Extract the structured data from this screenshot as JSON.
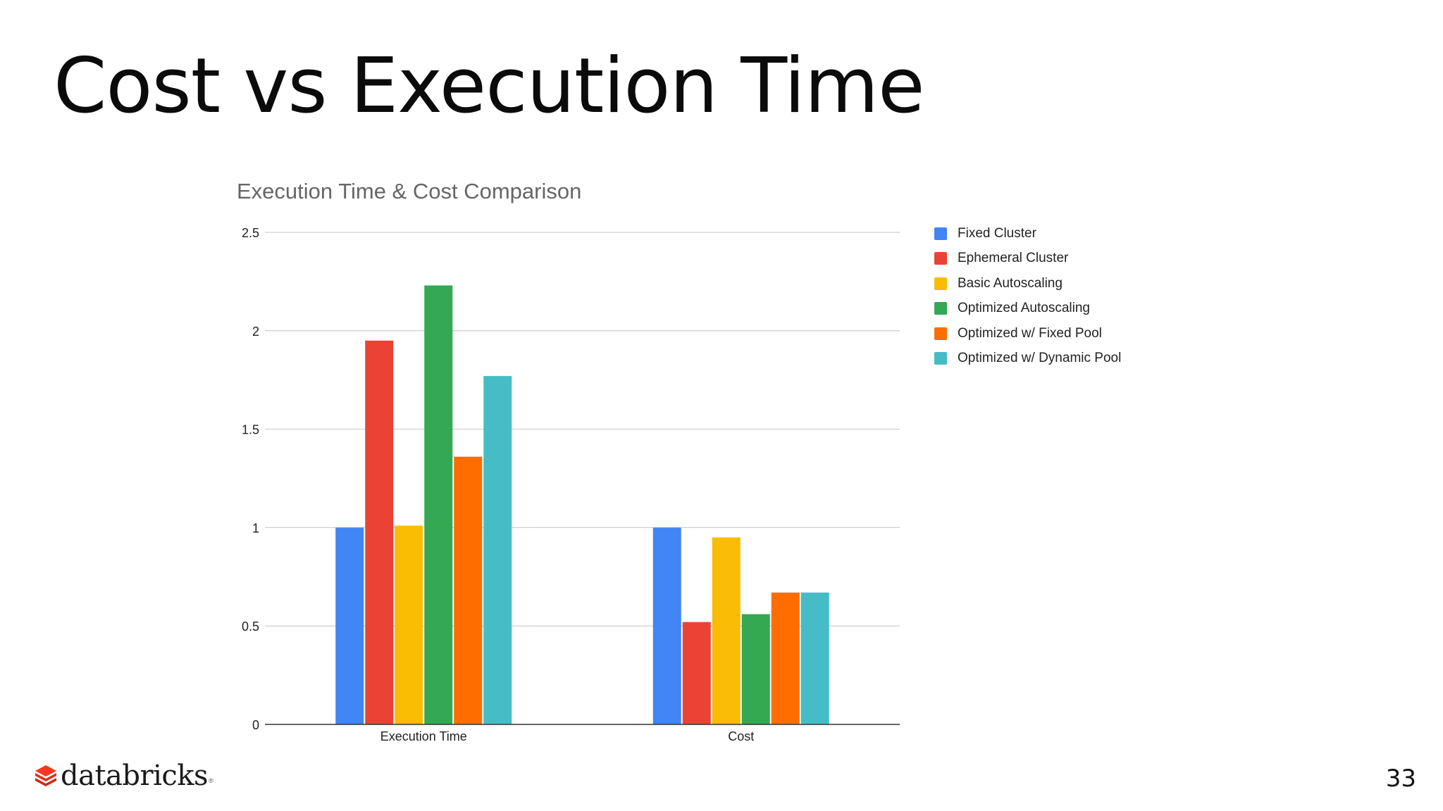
{
  "slide": {
    "title": "Cost vs Execution Time",
    "page_number": "33",
    "logo_text": "databricks"
  },
  "chart_data": {
    "type": "bar",
    "title": "Execution Time & Cost Comparison",
    "categories": [
      "Execution Time",
      "Cost"
    ],
    "series": [
      {
        "name": "Fixed Cluster",
        "color": "#4285f4",
        "values": [
          1.0,
          1.0
        ]
      },
      {
        "name": "Ephemeral Cluster",
        "color": "#ea4335",
        "values": [
          1.95,
          0.52
        ]
      },
      {
        "name": "Basic Autoscaling",
        "color": "#fbbc04",
        "values": [
          1.01,
          0.95
        ]
      },
      {
        "name": "Optimized Autoscaling",
        "color": "#34a853",
        "values": [
          2.23,
          0.56
        ]
      },
      {
        "name": "Optimized w/ Fixed Pool",
        "color": "#ff6d01",
        "values": [
          1.36,
          0.67
        ]
      },
      {
        "name": "Optimized w/ Dynamic Pool",
        "color": "#46bdc6",
        "values": [
          1.77,
          0.67
        ]
      }
    ],
    "ylim": [
      0,
      2.5
    ],
    "yticks": [
      0,
      0.5,
      1,
      1.5,
      2,
      2.5
    ],
    "ytick_labels": [
      "0",
      "0.5",
      "1",
      "1.5",
      "2",
      "2.5"
    ],
    "grid": true,
    "legend_position": "right"
  }
}
